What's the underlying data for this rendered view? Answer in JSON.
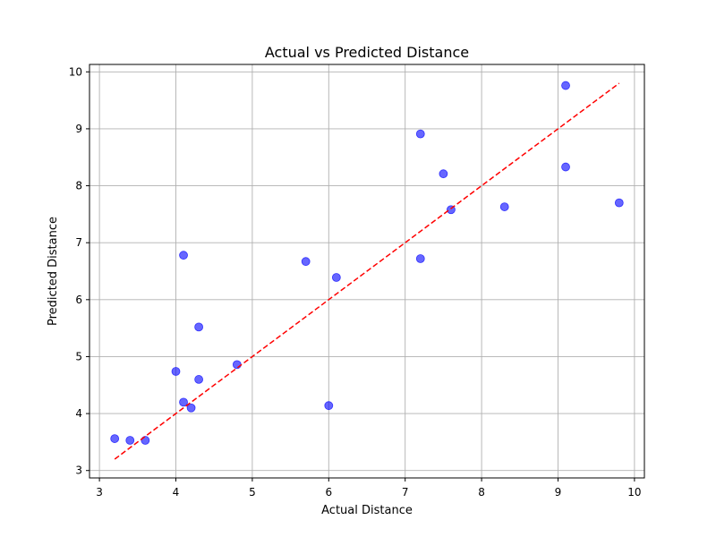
{
  "chart_data": {
    "type": "scatter",
    "title": "Actual vs Predicted Distance",
    "xlabel": "Actual Distance",
    "ylabel": "Predicted Distance",
    "xlim": [
      2.87,
      10.13
    ],
    "ylim": [
      2.87,
      10.13
    ],
    "xticks": [
      3,
      4,
      5,
      6,
      7,
      8,
      9,
      10
    ],
    "yticks": [
      3,
      4,
      5,
      6,
      7,
      8,
      9,
      10
    ],
    "grid": true,
    "point_color": "#0000ff",
    "reference_line": {
      "style": "dashed",
      "color": "#ff0000",
      "from": [
        3.2,
        3.2
      ],
      "to": [
        9.8,
        9.8
      ]
    },
    "points": [
      {
        "x": 3.2,
        "y": 3.56
      },
      {
        "x": 3.4,
        "y": 3.53
      },
      {
        "x": 3.6,
        "y": 3.53
      },
      {
        "x": 4.0,
        "y": 4.74
      },
      {
        "x": 4.1,
        "y": 4.2
      },
      {
        "x": 4.1,
        "y": 6.78
      },
      {
        "x": 4.2,
        "y": 4.1
      },
      {
        "x": 4.3,
        "y": 4.6
      },
      {
        "x": 4.3,
        "y": 5.52
      },
      {
        "x": 4.8,
        "y": 4.86
      },
      {
        "x": 5.7,
        "y": 6.67
      },
      {
        "x": 6.0,
        "y": 4.14
      },
      {
        "x": 6.1,
        "y": 6.39
      },
      {
        "x": 7.2,
        "y": 8.91
      },
      {
        "x": 7.2,
        "y": 6.72
      },
      {
        "x": 7.5,
        "y": 8.21
      },
      {
        "x": 7.6,
        "y": 7.58
      },
      {
        "x": 8.3,
        "y": 7.63
      },
      {
        "x": 9.1,
        "y": 9.76
      },
      {
        "x": 9.1,
        "y": 8.33
      },
      {
        "x": 9.8,
        "y": 7.7
      }
    ]
  }
}
